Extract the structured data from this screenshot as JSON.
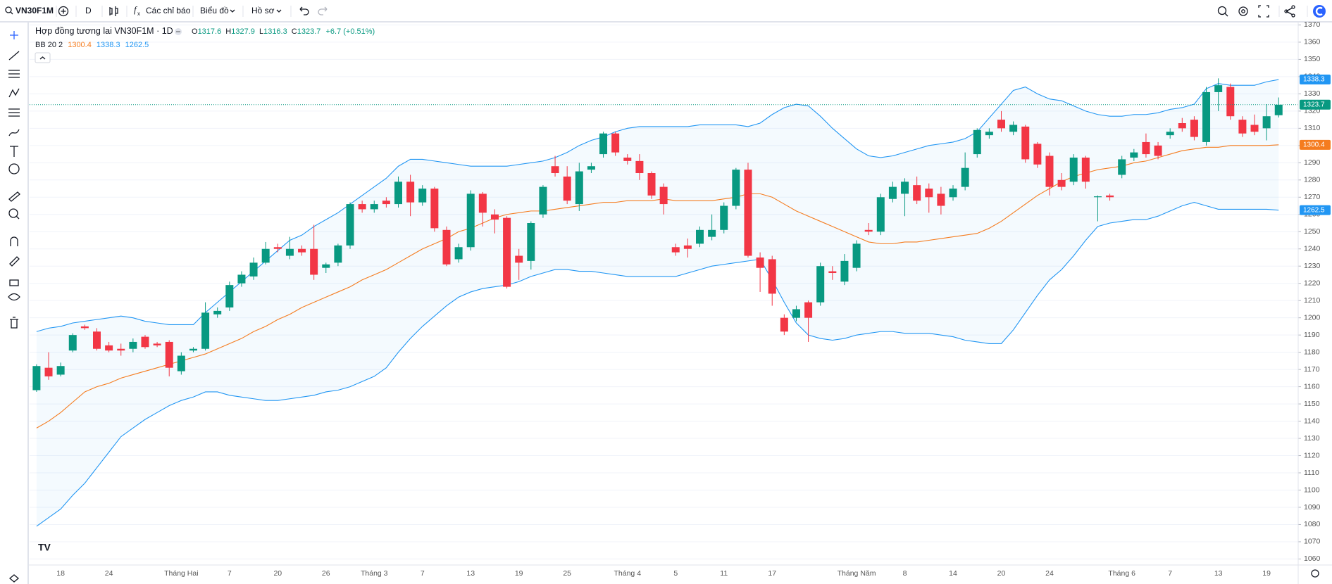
{
  "toolbar": {
    "symbol": "VN30F1M",
    "interval": "D",
    "indicators": "Các chỉ báo",
    "chart": "Biểu đồ",
    "profile": "Hồ sơ"
  },
  "legend": {
    "title": "Hợp đồng tương lai VN30F1M · 1D",
    "open": "O",
    "high": "H",
    "low": "L",
    "close": "C",
    "change": "+6.7 (+0.51%)"
  },
  "chart_data": {
    "type": "candlestick",
    "categories": [
      null,
      null,
      "18",
      null,
      null,
      null,
      "24",
      null,
      null,
      null,
      null,
      null,
      "Tháng Hai",
      null,
      null,
      null,
      "7",
      null,
      null,
      null,
      "20",
      null,
      null,
      null,
      "26",
      null,
      null,
      null,
      "Tháng 3",
      null,
      null,
      null,
      "7",
      null,
      null,
      null,
      "13",
      null,
      null,
      null,
      "19",
      null,
      null,
      null,
      "25",
      null,
      null,
      null,
      null,
      "Tháng 4",
      null,
      null,
      null,
      "5",
      null,
      null,
      null,
      "11",
      null,
      null,
      null,
      "17",
      null,
      null,
      null,
      null,
      null,
      null,
      "Tháng Năm",
      null,
      null,
      null,
      "8",
      null,
      null,
      null,
      "14",
      null,
      null,
      null,
      "20",
      null,
      null,
      null,
      "24",
      null,
      null,
      null,
      null,
      null,
      "Tháng 6",
      null,
      null,
      null,
      "7",
      null,
      null,
      null,
      "13",
      null,
      null,
      null,
      "19",
      null
    ],
    "open": [
      1158,
      1171,
      1167,
      1181,
      1195,
      1192,
      1184,
      1182,
      1182,
      1189,
      1185,
      1186,
      1169,
      1181,
      1182,
      1202,
      1206,
      1220,
      1224,
      1232,
      1241,
      1236,
      1240,
      1240,
      1229,
      1232,
      1242,
      1266,
      1263,
      1268,
      1266,
      1279,
      1267,
      1275,
      1251,
      1234,
      1241,
      1272,
      1260,
      1258,
      1236,
      1233,
      1260,
      1288,
      1282,
      1266,
      1286,
      1295,
      1307,
      1293,
      1291,
      1284,
      1276,
      1241,
      1242,
      1243,
      1247,
      1251,
      1265,
      1286,
      1235,
      1234,
      1200,
      1200,
      1209,
      1209,
      1227,
      1221,
      1229,
      1251,
      1250,
      1269,
      1272,
      1277,
      1275,
      1272,
      1270,
      1276,
      1295,
      1306,
      1315,
      1308,
      1311,
      1301,
      1294,
      1280,
      1279,
      1293,
      1270,
      1271,
      1283,
      1293,
      1302,
      1300,
      1306,
      1313,
      1315,
      1302,
      1331,
      1334,
      1315,
      1312,
      1310,
      1317.6
    ],
    "high": [
      1173,
      1180,
      1174,
      1191,
      1196,
      1194,
      1186,
      1185,
      1188,
      1190,
      1186,
      1187,
      1180,
      1183,
      1209,
      1206,
      1221,
      1227,
      1235,
      1244,
      1243,
      1247,
      1242,
      1254,
      1232,
      1243,
      1267,
      1268,
      1268,
      1270,
      1282,
      1283,
      1277,
      1276,
      1253,
      1243,
      1274,
      1273,
      1263,
      1259,
      1240,
      1256,
      1277,
      1294,
      1288,
      1290,
      1290,
      1308,
      1308,
      1295,
      1295,
      1285,
      1278,
      1243,
      1246,
      1253,
      1260,
      1267,
      1287,
      1290,
      1238,
      1236,
      1202,
      1207,
      1210,
      1232,
      1230,
      1237,
      1245,
      1255,
      1272,
      1279,
      1281,
      1282,
      1278,
      1276,
      1277,
      1296,
      1310,
      1310,
      1320,
      1314,
      1312,
      1302,
      1296,
      1284,
      1295,
      1294,
      1271,
      1272,
      1294,
      1298,
      1307,
      1302,
      1310,
      1316,
      1317,
      1334,
      1339,
      1336,
      1317,
      1318,
      1324,
      1327.9
    ],
    "low": [
      1157,
      1164,
      1166,
      1180,
      1193,
      1181,
      1180,
      1178,
      1180,
      1182,
      1183,
      1166,
      1167,
      1180,
      1181,
      1200,
      1204,
      1218,
      1222,
      1231,
      1238,
      1234,
      1236,
      1222,
      1226,
      1230,
      1240,
      1261,
      1261,
      1264,
      1264,
      1259,
      1265,
      1250,
      1230,
      1232,
      1239,
      1253,
      1249,
      1217,
      1222,
      1228,
      1258,
      1282,
      1266,
      1262,
      1284,
      1293,
      1294,
      1289,
      1280,
      1269,
      1260,
      1236,
      1235,
      1241,
      1245,
      1249,
      1263,
      1235,
      1215,
      1207,
      1190,
      1198,
      1186,
      1207,
      1222,
      1219,
      1227,
      1248,
      1248,
      1267,
      1259,
      1266,
      1261,
      1260,
      1268,
      1274,
      1293,
      1304,
      1308,
      1306,
      1290,
      1287,
      1271,
      1274,
      1277,
      1275,
      1256,
      1268,
      1281,
      1291,
      1293,
      1292,
      1304,
      1308,
      1303,
      1300,
      1320,
      1315,
      1305,
      1306,
      1303,
      1316.3
    ],
    "close": [
      1172,
      1166,
      1172,
      1190,
      1194,
      1182,
      1181,
      1181,
      1186,
      1183,
      1184,
      1171,
      1178,
      1182,
      1203,
      1204,
      1219,
      1225,
      1232,
      1240,
      1240,
      1240,
      1238,
      1225,
      1231,
      1242,
      1266,
      1263,
      1266,
      1266,
      1279,
      1267,
      1275,
      1252,
      1231,
      1241,
      1272,
      1261,
      1257,
      1218,
      1232,
      1255,
      1276,
      1284,
      1268,
      1285,
      1288,
      1307,
      1296,
      1291,
      1284,
      1271,
      1266,
      1238,
      1240,
      1251,
      1251,
      1265,
      1286,
      1236,
      1229,
      1214,
      1192,
      1205,
      1200,
      1230,
      1226,
      1233,
      1243,
      1250,
      1270,
      1276,
      1279,
      1268,
      1270,
      1265,
      1275,
      1287,
      1309,
      1308,
      1310,
      1312,
      1292,
      1289,
      1276,
      1276,
      1293,
      1279,
      1270.5,
      1270,
      1292,
      1296,
      1295,
      1294,
      1308,
      1310,
      1305,
      1331,
      1335,
      1317,
      1307,
      1308,
      1317,
      1323.7
    ],
    "up_color": "#089981",
    "down_color": "#f23645",
    "bands": {
      "name": "BB 20 2",
      "middle_color": "#f57c1f",
      "band_color": "#2196f3",
      "middle": [
        1136,
        1140,
        1145,
        1151,
        1157,
        1160,
        1162,
        1165,
        1167,
        1169,
        1171,
        1173,
        1175,
        1177,
        1179,
        1182,
        1185,
        1188,
        1192,
        1195,
        1199,
        1202,
        1206,
        1209,
        1212,
        1215,
        1218,
        1222,
        1225,
        1228,
        1232,
        1236,
        1240,
        1243,
        1246,
        1250,
        1252,
        1255,
        1258,
        1260,
        1261,
        1262,
        1262,
        1263,
        1264,
        1265,
        1266,
        1267,
        1267,
        1268,
        1268,
        1268,
        1269,
        1268,
        1268,
        1268,
        1268,
        1269,
        1270,
        1272,
        1272,
        1270,
        1266,
        1262,
        1259,
        1256,
        1253,
        1250,
        1247,
        1244,
        1243,
        1243,
        1244,
        1244,
        1245,
        1246,
        1247,
        1248,
        1249,
        1252,
        1256,
        1261,
        1266,
        1271,
        1275,
        1279,
        1282,
        1284,
        1286,
        1287,
        1288,
        1290,
        1291,
        1293,
        1295,
        1297,
        1298,
        1299,
        1299,
        1300,
        1300,
        1300,
        1300,
        1300.4
      ],
      "upper": [
        1192,
        1194,
        1195,
        1197,
        1198,
        1199,
        1200,
        1201,
        1200,
        1198,
        1197,
        1196,
        1196,
        1196,
        1203,
        1209,
        1215,
        1221,
        1227,
        1233,
        1239,
        1245,
        1248,
        1253,
        1257,
        1261,
        1266,
        1271,
        1276,
        1281,
        1288,
        1292,
        1292,
        1291,
        1290,
        1289,
        1288,
        1288,
        1288,
        1288,
        1289,
        1290,
        1291,
        1293,
        1296,
        1300,
        1303,
        1305,
        1308,
        1310,
        1311,
        1311,
        1311,
        1311,
        1311,
        1312,
        1312,
        1312,
        1312,
        1311,
        1313,
        1318,
        1322,
        1324,
        1323,
        1317,
        1310,
        1304,
        1298,
        1294,
        1293,
        1294,
        1296,
        1298,
        1300,
        1301,
        1302,
        1304,
        1308,
        1316,
        1324,
        1332,
        1334,
        1330,
        1327,
        1326,
        1323,
        1320,
        1318,
        1317,
        1317,
        1318,
        1318,
        1319,
        1321,
        1322,
        1324,
        1333,
        1336,
        1335,
        1335,
        1335,
        1337,
        1338.3
      ],
      "lower": [
        1079,
        1084,
        1089,
        1097,
        1104,
        1113,
        1122,
        1131,
        1136,
        1141,
        1145,
        1149,
        1152,
        1154,
        1157,
        1157,
        1155,
        1154,
        1153,
        1152,
        1152,
        1153,
        1154,
        1155,
        1157,
        1158,
        1160,
        1163,
        1166,
        1171,
        1180,
        1188,
        1195,
        1201,
        1207,
        1212,
        1215,
        1217,
        1218,
        1219,
        1221,
        1224,
        1226,
        1228,
        1228,
        1227,
        1227,
        1226,
        1225,
        1224,
        1224,
        1224,
        1224,
        1224,
        1226,
        1228,
        1230,
        1231,
        1232,
        1233,
        1234,
        1222,
        1209,
        1197,
        1190,
        1188,
        1187,
        1188,
        1190,
        1191,
        1192,
        1192,
        1191,
        1191,
        1191,
        1190,
        1189,
        1187,
        1186,
        1185,
        1185,
        1193,
        1203,
        1213,
        1222,
        1228,
        1236,
        1245,
        1253,
        1255,
        1256,
        1257,
        1257,
        1259,
        1262,
        1265,
        1267,
        1265,
        1263,
        1263,
        1263,
        1263,
        1263,
        1262.5
      ]
    },
    "ylim": [
      1056.5,
      1371
    ],
    "yticks": [
      1060,
      1070,
      1080,
      1090,
      1100,
      1110,
      1120,
      1130,
      1140,
      1150,
      1160,
      1170,
      1180,
      1190,
      1200,
      1210,
      1220,
      1230,
      1240,
      1250,
      1260,
      1270,
      1280,
      1290,
      1300,
      1310,
      1320,
      1330,
      1340,
      1350,
      1360,
      1370
    ],
    "grid": true
  }
}
